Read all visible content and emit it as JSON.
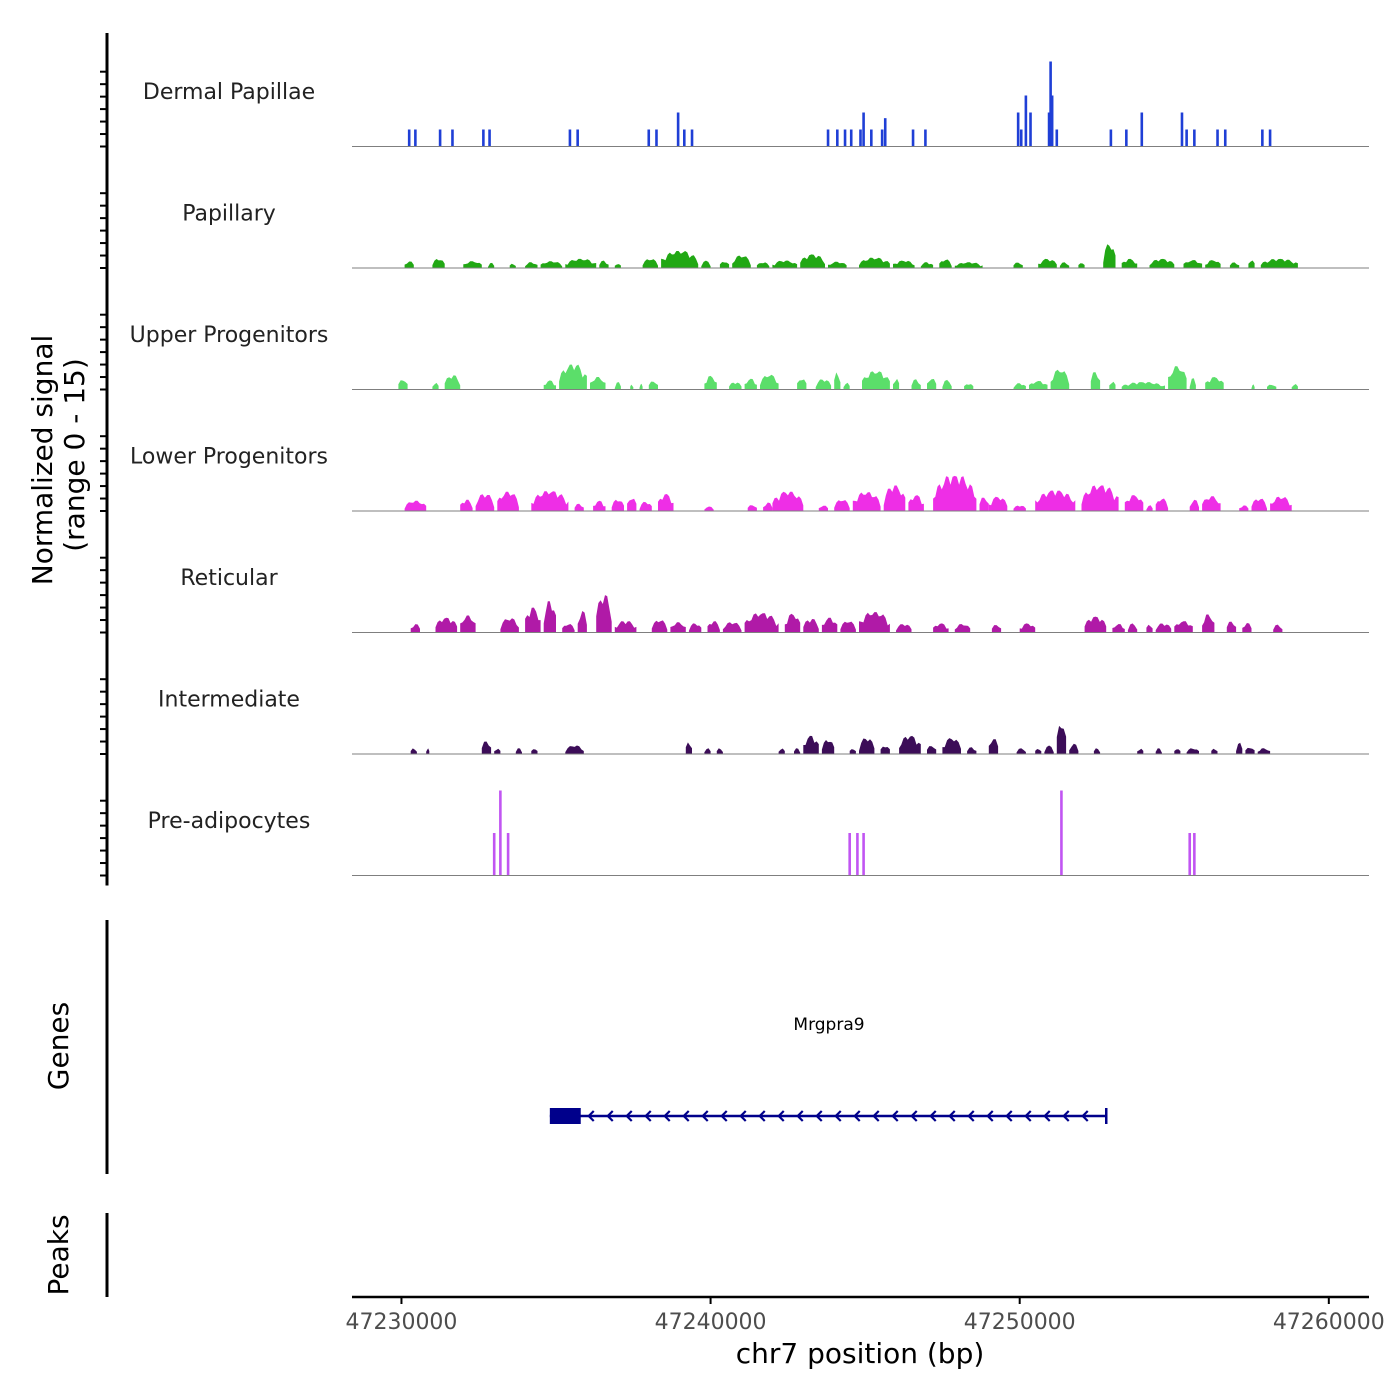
{
  "chart_data": {
    "type": "area",
    "title": "",
    "ylabel_line1": "Normalized signal",
    "ylabel_line2": "(range 0 - 15)",
    "genes_label": "Genes",
    "peaks_label": "Peaks",
    "xlabel": "chr7 position (bp)",
    "chromosome": "chr7",
    "xlim": [
      47228400,
      47261300
    ],
    "ylim": [
      0,
      15
    ],
    "x_ticks": [
      47230000,
      47240000,
      47250000,
      47260000
    ],
    "x_tick_labels": [
      "47230000",
      "47240000",
      "47250000",
      "47260000"
    ],
    "tracks": [
      {
        "name": "Dermal Papillae",
        "color": "#1f3fd6",
        "style": "bars",
        "peaks": [
          [
            47230250,
            3
          ],
          [
            47230450,
            3
          ],
          [
            47231250,
            3
          ],
          [
            47231650,
            3
          ],
          [
            47232650,
            3
          ],
          [
            47232850,
            3
          ],
          [
            47235450,
            3
          ],
          [
            47235700,
            3
          ],
          [
            47238000,
            3
          ],
          [
            47238250,
            3
          ],
          [
            47238950,
            6
          ],
          [
            47239150,
            3
          ],
          [
            47239400,
            3
          ],
          [
            47243800,
            3
          ],
          [
            47244100,
            3
          ],
          [
            47244350,
            3
          ],
          [
            47244550,
            3
          ],
          [
            47244850,
            3
          ],
          [
            47244950,
            6
          ],
          [
            47245200,
            3
          ],
          [
            47245550,
            3
          ],
          [
            47245650,
            5
          ],
          [
            47246550,
            3
          ],
          [
            47246950,
            3
          ],
          [
            47249950,
            6
          ],
          [
            47250050,
            3
          ],
          [
            47250200,
            9
          ],
          [
            47250350,
            6
          ],
          [
            47250950,
            6
          ],
          [
            47251000,
            15
          ],
          [
            47251050,
            9
          ],
          [
            47251200,
            3
          ],
          [
            47252950,
            3
          ],
          [
            47253450,
            3
          ],
          [
            47253950,
            6
          ],
          [
            47255250,
            6
          ],
          [
            47255400,
            3
          ],
          [
            47255650,
            3
          ],
          [
            47256400,
            3
          ],
          [
            47256650,
            3
          ],
          [
            47257850,
            3
          ],
          [
            47258100,
            3
          ]
        ]
      },
      {
        "name": "Papillary",
        "color": "#21a814",
        "style": "area",
        "segments": [
          [
            47230100,
            47230400,
            1.2
          ],
          [
            47231000,
            47231400,
            1.6
          ],
          [
            47232000,
            47232600,
            1.2
          ],
          [
            47232800,
            47233000,
            0.9
          ],
          [
            47233500,
            47233700,
            0.8
          ],
          [
            47234000,
            47234400,
            1.0
          ],
          [
            47234500,
            47235200,
            1.2
          ],
          [
            47235300,
            47236300,
            1.6
          ],
          [
            47236400,
            47236700,
            1.3
          ],
          [
            47236900,
            47237100,
            0.8
          ],
          [
            47237800,
            47238300,
            1.6
          ],
          [
            47238400,
            47239600,
            3.0
          ],
          [
            47239700,
            47240000,
            1.3
          ],
          [
            47240300,
            47240600,
            1.2
          ],
          [
            47240700,
            47241300,
            2.2
          ],
          [
            47241500,
            47241900,
            1.0
          ],
          [
            47242000,
            47242800,
            1.3
          ],
          [
            47242900,
            47243700,
            2.4
          ],
          [
            47243800,
            47244400,
            1.1
          ],
          [
            47244800,
            47245800,
            1.8
          ],
          [
            47245900,
            47246600,
            1.3
          ],
          [
            47246800,
            47247200,
            1.0
          ],
          [
            47247400,
            47247800,
            1.5
          ],
          [
            47247900,
            47248800,
            1.0
          ],
          [
            47249800,
            47250100,
            1.0
          ],
          [
            47250600,
            47251200,
            1.6
          ],
          [
            47251300,
            47251600,
            1.0
          ],
          [
            47251900,
            47252100,
            1.0
          ],
          [
            47252700,
            47253100,
            4.2
          ],
          [
            47253300,
            47253800,
            1.6
          ],
          [
            47254200,
            47255000,
            1.6
          ],
          [
            47255300,
            47255900,
            1.4
          ],
          [
            47256000,
            47256500,
            1.4
          ],
          [
            47256800,
            47257100,
            1.0
          ],
          [
            47257400,
            47257600,
            1.5
          ],
          [
            47257800,
            47259000,
            1.6
          ]
        ]
      },
      {
        "name": "Upper Progenitors",
        "color": "#5bde6a",
        "style": "area",
        "segments": [
          [
            47229900,
            47230200,
            1.8
          ],
          [
            47231000,
            47231200,
            1.2
          ],
          [
            47231400,
            47231900,
            2.5
          ],
          [
            47234600,
            47235000,
            1.6
          ],
          [
            47235100,
            47236000,
            4.4
          ],
          [
            47236100,
            47236600,
            2.2
          ],
          [
            47236900,
            47237100,
            1.3
          ],
          [
            47237400,
            47237500,
            0.9
          ],
          [
            47237700,
            47237800,
            1.0
          ],
          [
            47238000,
            47238300,
            1.5
          ],
          [
            47239800,
            47240200,
            2.4
          ],
          [
            47240600,
            47241000,
            1.3
          ],
          [
            47241100,
            47241500,
            1.9
          ],
          [
            47241600,
            47242200,
            2.6
          ],
          [
            47242800,
            47243100,
            2.0
          ],
          [
            47243400,
            47243900,
            1.8
          ],
          [
            47244000,
            47244200,
            3.1
          ],
          [
            47244300,
            47244500,
            1.2
          ],
          [
            47244900,
            47245800,
            3.2
          ],
          [
            47245900,
            47246100,
            2.0
          ],
          [
            47246500,
            47246800,
            1.8
          ],
          [
            47247000,
            47247300,
            2.0
          ],
          [
            47247500,
            47247800,
            1.7
          ],
          [
            47248200,
            47248500,
            1.1
          ],
          [
            47249800,
            47250200,
            1.1
          ],
          [
            47250300,
            47250900,
            1.5
          ],
          [
            47251000,
            47251600,
            3.5
          ],
          [
            47252300,
            47252600,
            3.2
          ],
          [
            47252900,
            47253100,
            1.5
          ],
          [
            47253300,
            47254700,
            1.3
          ],
          [
            47254800,
            47255400,
            4.1
          ],
          [
            47255500,
            47255700,
            2.0
          ],
          [
            47256000,
            47256600,
            2.2
          ],
          [
            47257500,
            47257600,
            0.9
          ],
          [
            47258000,
            47258300,
            0.9
          ],
          [
            47258800,
            47259000,
            1.0
          ]
        ]
      },
      {
        "name": "Lower Progenitors",
        "color": "#ee2ee6",
        "style": "area",
        "segments": [
          [
            47230100,
            47230800,
            1.8
          ],
          [
            47231900,
            47232300,
            2.0
          ],
          [
            47232400,
            47233000,
            3.0
          ],
          [
            47233100,
            47233800,
            3.4
          ],
          [
            47234200,
            47235400,
            3.5
          ],
          [
            47235600,
            47235900,
            1.3
          ],
          [
            47236200,
            47236600,
            1.8
          ],
          [
            47236800,
            47237200,
            2.0
          ],
          [
            47237300,
            47237600,
            2.4
          ],
          [
            47237700,
            47238100,
            1.6
          ],
          [
            47238300,
            47238800,
            3.0
          ],
          [
            47239800,
            47240100,
            0.8
          ],
          [
            47241200,
            47241500,
            1.1
          ],
          [
            47241700,
            47242000,
            1.5
          ],
          [
            47242000,
            47243000,
            3.4
          ],
          [
            47243500,
            47243800,
            1.0
          ],
          [
            47244000,
            47244500,
            2.0
          ],
          [
            47244600,
            47245500,
            3.3
          ],
          [
            47245600,
            47246300,
            4.5
          ],
          [
            47246400,
            47246900,
            2.8
          ],
          [
            47247200,
            47248600,
            6.2
          ],
          [
            47248700,
            47249000,
            2.5
          ],
          [
            47249000,
            47249600,
            2.5
          ],
          [
            47249800,
            47250200,
            1.0
          ],
          [
            47250500,
            47251800,
            3.6
          ],
          [
            47252000,
            47253200,
            4.5
          ],
          [
            47253400,
            47254000,
            2.8
          ],
          [
            47254100,
            47254300,
            1.0
          ],
          [
            47254400,
            47254800,
            2.2
          ],
          [
            47255500,
            47255800,
            2.0
          ],
          [
            47255900,
            47256500,
            2.6
          ],
          [
            47257100,
            47257400,
            1.0
          ],
          [
            47257500,
            47258000,
            2.2
          ],
          [
            47258100,
            47258800,
            2.5
          ]
        ]
      },
      {
        "name": "Reticular",
        "color": "#b01aa7",
        "style": "area",
        "segments": [
          [
            47230300,
            47230600,
            1.5
          ],
          [
            47231100,
            47231800,
            2.6
          ],
          [
            47231900,
            47232400,
            3.0
          ],
          [
            47233200,
            47233800,
            2.5
          ],
          [
            47234000,
            47234500,
            4.4
          ],
          [
            47234600,
            47235000,
            5.5
          ],
          [
            47235200,
            47235600,
            1.5
          ],
          [
            47235700,
            47236000,
            3.8
          ],
          [
            47236300,
            47236800,
            6.6
          ],
          [
            47236900,
            47237600,
            2.0
          ],
          [
            47238100,
            47238600,
            2.2
          ],
          [
            47238700,
            47239200,
            1.8
          ],
          [
            47239300,
            47239700,
            1.6
          ],
          [
            47239900,
            47240300,
            2.0
          ],
          [
            47240400,
            47241000,
            1.8
          ],
          [
            47241100,
            47242200,
            3.4
          ],
          [
            47242400,
            47242900,
            3.3
          ],
          [
            47243000,
            47243500,
            2.4
          ],
          [
            47243600,
            47244100,
            2.6
          ],
          [
            47244200,
            47244700,
            2.0
          ],
          [
            47244800,
            47245800,
            3.6
          ],
          [
            47246000,
            47246500,
            1.5
          ],
          [
            47247200,
            47247700,
            1.6
          ],
          [
            47247900,
            47248400,
            1.5
          ],
          [
            47249100,
            47249400,
            1.4
          ],
          [
            47250000,
            47250500,
            1.6
          ],
          [
            47252100,
            47252800,
            2.8
          ],
          [
            47253000,
            47253400,
            1.5
          ],
          [
            47253500,
            47253800,
            1.6
          ],
          [
            47254100,
            47254300,
            1.5
          ],
          [
            47254400,
            47254900,
            1.6
          ],
          [
            47255000,
            47255600,
            2.0
          ],
          [
            47255900,
            47256300,
            3.2
          ],
          [
            47256700,
            47257000,
            2.0
          ],
          [
            47257200,
            47257500,
            1.7
          ],
          [
            47258200,
            47258500,
            1.4
          ]
        ]
      },
      {
        "name": "Intermediate",
        "color": "#3c0d58",
        "style": "area",
        "segments": [
          [
            47230300,
            47230500,
            1.0
          ],
          [
            47230800,
            47230900,
            1.0
          ],
          [
            47232600,
            47232900,
            2.3
          ],
          [
            47233000,
            47233200,
            1.0
          ],
          [
            47233700,
            47233900,
            1.0
          ],
          [
            47234200,
            47234400,
            1.0
          ],
          [
            47235300,
            47235900,
            1.5
          ],
          [
            47239200,
            47239400,
            2.2
          ],
          [
            47239800,
            47240000,
            1.0
          ],
          [
            47240200,
            47240400,
            1.0
          ],
          [
            47242200,
            47242400,
            1.0
          ],
          [
            47242700,
            47242900,
            1.0
          ],
          [
            47243000,
            47243500,
            3.2
          ],
          [
            47243600,
            47244000,
            2.5
          ],
          [
            47244500,
            47244700,
            1.0
          ],
          [
            47244800,
            47245300,
            2.8
          ],
          [
            47245500,
            47245800,
            1.5
          ],
          [
            47246100,
            47246800,
            3.2
          ],
          [
            47247000,
            47247300,
            1.5
          ],
          [
            47247500,
            47248100,
            2.8
          ],
          [
            47248300,
            47248600,
            1.2
          ],
          [
            47249000,
            47249300,
            2.8
          ],
          [
            47249900,
            47250200,
            1.0
          ],
          [
            47250500,
            47250700,
            1.0
          ],
          [
            47250800,
            47251100,
            1.5
          ],
          [
            47251200,
            47251500,
            5.6
          ],
          [
            47251600,
            47251900,
            1.8
          ],
          [
            47252400,
            47252600,
            1.0
          ],
          [
            47253800,
            47254000,
            1.0
          ],
          [
            47254400,
            47254600,
            1.0
          ],
          [
            47255000,
            47255200,
            1.0
          ],
          [
            47255400,
            47255800,
            1.0
          ],
          [
            47256200,
            47256400,
            1.0
          ],
          [
            47257000,
            47257200,
            2.0
          ],
          [
            47257300,
            47257600,
            1.2
          ],
          [
            47257700,
            47258100,
            1.0
          ]
        ]
      },
      {
        "name": "Pre-adipocytes",
        "color": "#c155f2",
        "style": "bars",
        "peaks": [
          [
            47233000,
            7.5
          ],
          [
            47233200,
            15
          ],
          [
            47233450,
            7.5
          ],
          [
            47244500,
            7.5
          ],
          [
            47244750,
            7.5
          ],
          [
            47244950,
            7.5
          ],
          [
            47251350,
            15
          ],
          [
            47255500,
            7.5
          ],
          [
            47255650,
            7.5
          ]
        ]
      }
    ],
    "gene": {
      "name": "Mrgpra9",
      "strand": "-",
      "start": 47234800,
      "end": 47252800,
      "cds_start": 47234800,
      "cds_end": 47235800,
      "color": "#00008b"
    }
  }
}
